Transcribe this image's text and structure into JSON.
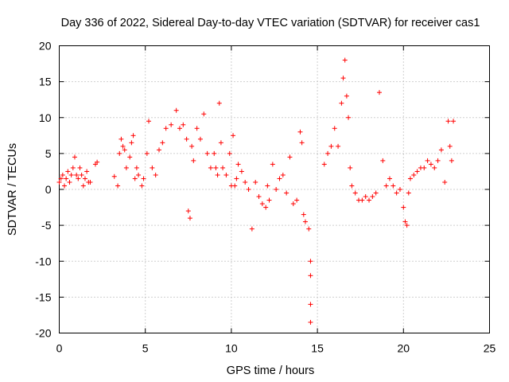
{
  "chart_data": {
    "type": "scatter",
    "title": "Day 336 of 2022, Sidereal Day-to-day VTEC variation (SDTVAR) for receiver cas1",
    "xlabel": "GPS time / hours",
    "ylabel": "SDTVAR / TECUs",
    "xlim": [
      0,
      25
    ],
    "ylim": [
      -20,
      20
    ],
    "xticks": [
      0,
      5,
      10,
      15,
      20,
      25
    ],
    "yticks": [
      -20,
      -15,
      -10,
      -5,
      0,
      5,
      10,
      15,
      20
    ],
    "xtick_labels": [
      "0",
      "5",
      "10",
      "15",
      "20",
      "25"
    ],
    "ytick_labels": [
      "-20",
      "-15",
      "-10",
      "-5",
      "0",
      "5",
      "10",
      "15",
      "20"
    ],
    "grid": true,
    "marker": "+",
    "marker_color": "#ff0000",
    "series": [
      {
        "name": "SDTVAR",
        "x": [
          0.0,
          0.1,
          0.2,
          0.3,
          0.4,
          0.5,
          0.6,
          0.7,
          0.8,
          0.9,
          1.0,
          1.1,
          1.2,
          1.3,
          1.4,
          1.5,
          1.6,
          1.7,
          1.8,
          2.1,
          2.2,
          3.2,
          3.4,
          3.5,
          3.6,
          3.7,
          3.8,
          3.9,
          4.1,
          4.2,
          4.3,
          4.4,
          4.5,
          4.6,
          4.8,
          4.9,
          5.1,
          5.2,
          5.4,
          5.6,
          5.8,
          6.0,
          6.2,
          6.5,
          6.8,
          7.0,
          7.2,
          7.4,
          7.5,
          7.6,
          7.7,
          7.8,
          8.0,
          8.2,
          8.4,
          8.6,
          8.8,
          9.0,
          9.1,
          9.2,
          9.3,
          9.4,
          9.5,
          9.7,
          9.9,
          10.0,
          10.1,
          10.2,
          10.3,
          10.4,
          10.6,
          10.8,
          11.0,
          11.2,
          11.4,
          11.6,
          11.8,
          12.0,
          12.1,
          12.2,
          12.4,
          12.6,
          12.8,
          13.0,
          13.2,
          13.4,
          13.6,
          13.8,
          14.0,
          14.1,
          14.2,
          14.3,
          14.5,
          14.6,
          14.6,
          14.6,
          14.6,
          15.4,
          15.6,
          15.8,
          16.0,
          16.2,
          16.4,
          16.5,
          16.6,
          16.7,
          16.8,
          16.9,
          17.0,
          17.2,
          17.4,
          17.6,
          17.8,
          18.0,
          18.2,
          18.4,
          18.6,
          18.8,
          19.0,
          19.2,
          19.4,
          19.6,
          19.8,
          20.0,
          20.1,
          20.2,
          20.3,
          20.4,
          20.6,
          20.8,
          21.0,
          21.2,
          21.4,
          21.6,
          21.8,
          22.0,
          22.2,
          22.4,
          22.6,
          22.7,
          22.8,
          22.9
        ],
        "y": [
          1.0,
          1.5,
          2.0,
          0.5,
          1.5,
          2.5,
          1.0,
          2.0,
          3.0,
          4.5,
          2.0,
          1.5,
          3.0,
          2.0,
          0.5,
          1.5,
          2.5,
          1.0,
          1.0,
          3.5,
          3.8,
          1.8,
          0.5,
          5.0,
          7.0,
          6.0,
          5.5,
          3.0,
          4.5,
          6.5,
          7.5,
          1.5,
          3.0,
          2.0,
          0.5,
          1.5,
          5.0,
          9.5,
          3.0,
          2.0,
          5.5,
          6.5,
          8.5,
          9.0,
          11.0,
          8.5,
          9.0,
          7.0,
          -3.0,
          -4.0,
          6.0,
          4.0,
          8.5,
          7.0,
          10.5,
          5.0,
          3.0,
          5.0,
          3.0,
          2.0,
          12.0,
          6.5,
          3.0,
          2.0,
          5.0,
          0.5,
          7.5,
          0.5,
          1.5,
          3.5,
          2.5,
          1.0,
          0.0,
          -5.5,
          1.0,
          -1.0,
          -2.0,
          -2.5,
          0.5,
          -1.5,
          3.5,
          0.0,
          1.5,
          2.0,
          -0.5,
          4.5,
          -2.0,
          -1.5,
          8.0,
          6.5,
          -3.5,
          -4.5,
          -5.5,
          -12.0,
          -16.0,
          -18.5,
          -10.0,
          3.5,
          5.0,
          6.0,
          8.5,
          6.0,
          12.0,
          15.5,
          18.0,
          13.0,
          10.0,
          3.0,
          0.5,
          -0.5,
          -1.5,
          -1.5,
          -1.0,
          -1.5,
          -1.0,
          -0.5,
          13.5,
          4.0,
          0.5,
          1.5,
          0.5,
          -0.5,
          0.0,
          -2.5,
          -4.5,
          -5.0,
          -0.5,
          1.5,
          2.0,
          2.5,
          3.0,
          3.0,
          4.0,
          3.5,
          3.0,
          4.0,
          5.5,
          1.0,
          9.5,
          6.0,
          4.0,
          9.5
        ]
      }
    ]
  }
}
